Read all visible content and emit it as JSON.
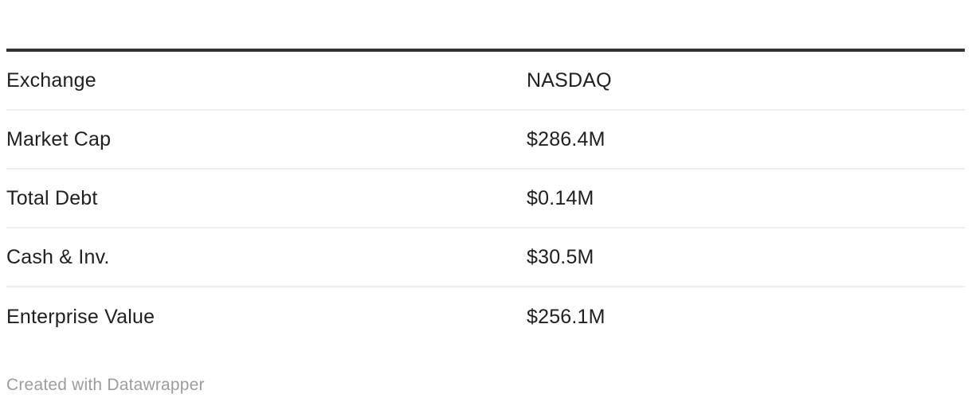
{
  "chart_data": {
    "type": "table",
    "title": "",
    "columns": [
      "label",
      "value"
    ],
    "rows": [
      {
        "label": "Exchange",
        "value": "NASDAQ"
      },
      {
        "label": "Market Cap",
        "value": "$286.4M"
      },
      {
        "label": "Total Debt",
        "value": "$0.14M"
      },
      {
        "label": "Cash & Inv.",
        "value": "$30.5M"
      },
      {
        "label": "Enterprise Value",
        "value": "$256.1M"
      }
    ],
    "layout": {
      "header_rule": true,
      "row_dividers": true,
      "grid": "horizontal-only"
    }
  },
  "footer": {
    "attribution": "Created with Datawrapper"
  },
  "colors": {
    "background": "#ffffff",
    "header_rule": "#333333",
    "row_divider": "#ededed",
    "text": "#202020",
    "footer_text": "#9c9c9c"
  }
}
